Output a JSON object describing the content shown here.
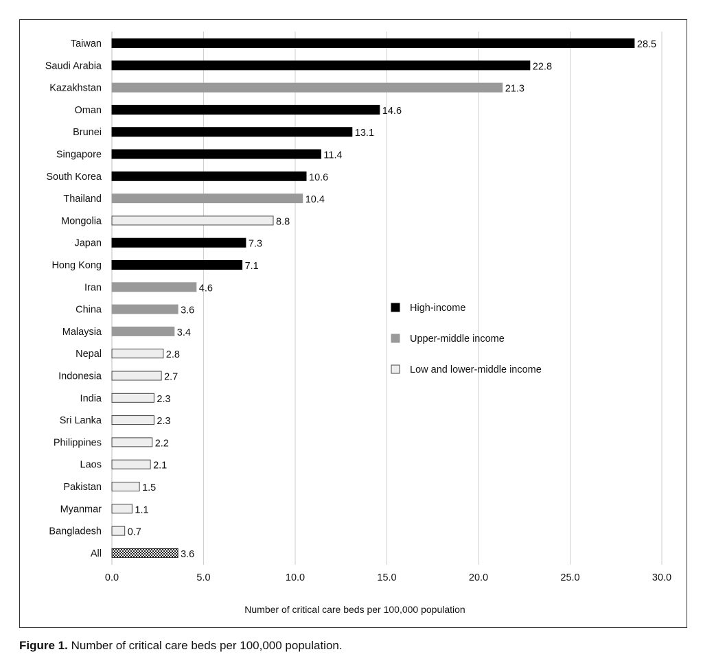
{
  "chart_data": {
    "type": "bar",
    "orientation": "horizontal",
    "xlabel": "Number of critical care beds per 100,000 population",
    "xlim": [
      0,
      30
    ],
    "xticks": [
      "0.0",
      "5.0",
      "10.0",
      "15.0",
      "20.0",
      "25.0",
      "30.0"
    ],
    "grid": "vertical",
    "legend_position": "right-center",
    "groups": [
      {
        "name": "High-income",
        "color": "#000000",
        "pattern": "solid"
      },
      {
        "name": "Upper-middle  income",
        "color": "#999999",
        "pattern": "solid"
      },
      {
        "name": "Low and lower-middle  income",
        "color": "#eeeeee",
        "pattern": "outlined"
      }
    ],
    "bars": [
      {
        "label": "Taiwan",
        "value": 28.5,
        "value_label": "28.5",
        "group": 0
      },
      {
        "label": "Saudi Arabia",
        "value": 22.8,
        "value_label": "22.8",
        "group": 0
      },
      {
        "label": "Kazakhstan",
        "value": 21.3,
        "value_label": "21.3",
        "group": 1
      },
      {
        "label": "Oman",
        "value": 14.6,
        "value_label": "14.6",
        "group": 0
      },
      {
        "label": "Brunei",
        "value": 13.1,
        "value_label": "13.1",
        "group": 0
      },
      {
        "label": "Singapore",
        "value": 11.4,
        "value_label": "11.4",
        "group": 0
      },
      {
        "label": "South Korea",
        "value": 10.6,
        "value_label": "10.6",
        "group": 0
      },
      {
        "label": "Thailand",
        "value": 10.4,
        "value_label": "10.4",
        "group": 1
      },
      {
        "label": "Mongolia",
        "value": 8.8,
        "value_label": "8.8",
        "group": 2
      },
      {
        "label": "Japan",
        "value": 7.3,
        "value_label": "7.3",
        "group": 0
      },
      {
        "label": "Hong Kong",
        "value": 7.1,
        "value_label": "7.1",
        "group": 0
      },
      {
        "label": "Iran",
        "value": 4.6,
        "value_label": "4.6",
        "group": 1
      },
      {
        "label": "China",
        "value": 3.6,
        "value_label": "3.6",
        "group": 1
      },
      {
        "label": "Malaysia",
        "value": 3.4,
        "value_label": "3.4",
        "group": 1
      },
      {
        "label": "Nepal",
        "value": 2.8,
        "value_label": "2.8",
        "group": 2
      },
      {
        "label": "Indonesia",
        "value": 2.7,
        "value_label": "2.7",
        "group": 2
      },
      {
        "label": "India",
        "value": 2.3,
        "value_label": "2.3",
        "group": 2
      },
      {
        "label": "Sri Lanka",
        "value": 2.3,
        "value_label": "2.3",
        "group": 2
      },
      {
        "label": "Philippines",
        "value": 2.2,
        "value_label": "2.2",
        "group": 2
      },
      {
        "label": "Laos",
        "value": 2.1,
        "value_label": "2.1",
        "group": 2
      },
      {
        "label": "Pakistan",
        "value": 1.5,
        "value_label": "1.5",
        "group": 2
      },
      {
        "label": "Myanmar",
        "value": 1.1,
        "value_label": "1.1",
        "group": 2
      },
      {
        "label": "Bangladesh",
        "value": 0.7,
        "value_label": "0.7",
        "group": 2
      },
      {
        "label": "All",
        "value": 3.6,
        "value_label": "3.6",
        "group": "all"
      }
    ]
  },
  "caption": {
    "label": "Figure 1.",
    "text": " Number of critical care beds per 100,000 population."
  }
}
